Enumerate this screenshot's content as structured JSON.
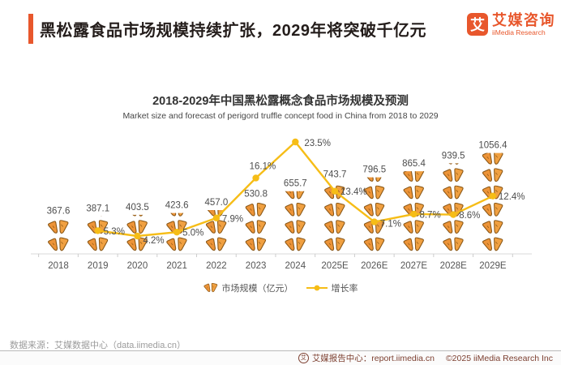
{
  "header": {
    "title": "黑松露食品市场规模持续扩张，2029年将突破千亿元"
  },
  "logo": {
    "mark_glyph": "艾",
    "name_cn": "艾媒咨询",
    "name_en": "iiMedia Research"
  },
  "chart": {
    "title": "2018-2029年中国黑松露概念食品市场规模及预测",
    "subtitle": "Market size and forecast of perigord truffle concept food in China from 2018 to 2029"
  },
  "chart_data": {
    "type": "bar",
    "subtype": "pictogram-bar-with-line",
    "title": "2018-2029年中国黑松露概念食品市场规模及预测",
    "subtitle": "Market size and forecast of perigord truffle concept food in China from 2018 to 2029",
    "categories": [
      "2018",
      "2019",
      "2020",
      "2021",
      "2022",
      "2023",
      "2024",
      "2025E",
      "2026E",
      "2027E",
      "2028E",
      "2029E"
    ],
    "series": [
      {
        "name": "市场规模（亿元）",
        "type": "pictogram-bar",
        "unit": "亿元",
        "values": [
          367.6,
          387.1,
          403.5,
          423.6,
          457.0,
          530.8,
          655.7,
          743.7,
          796.5,
          865.4,
          939.5,
          1056.4
        ]
      },
      {
        "name": "增长率",
        "type": "line",
        "unit": "%",
        "values": [
          null,
          5.3,
          4.2,
          5.0,
          7.9,
          16.1,
          23.5,
          13.4,
          7.1,
          8.7,
          8.6,
          12.4
        ]
      }
    ],
    "legend_position": "bottom",
    "grid": false,
    "icon_unit_value": 180,
    "colors": {
      "bar_icon": "#F09C3E",
      "bar_icon_outline": "#8a5716",
      "line": "#F6BD17",
      "label": "#4d4d4d",
      "axis": "#d9d9d9",
      "tick": "#cccccc",
      "axis_label": "#555555"
    }
  },
  "legend": {
    "items": [
      {
        "label": "市场规模（亿元）",
        "swatch": "truffle-icon"
      },
      {
        "label": "增长率",
        "swatch": "line-dot"
      }
    ]
  },
  "source": {
    "text": "数据来源：艾媒数据中心（data.iimedia.cn）"
  },
  "footer": {
    "badge_glyph": "艾",
    "report_text": "艾媒报告中心：report.iimedia.cn",
    "copyright": "©2025  iiMedia Research  Inc"
  },
  "colors": {
    "accent": "#E8572C"
  }
}
